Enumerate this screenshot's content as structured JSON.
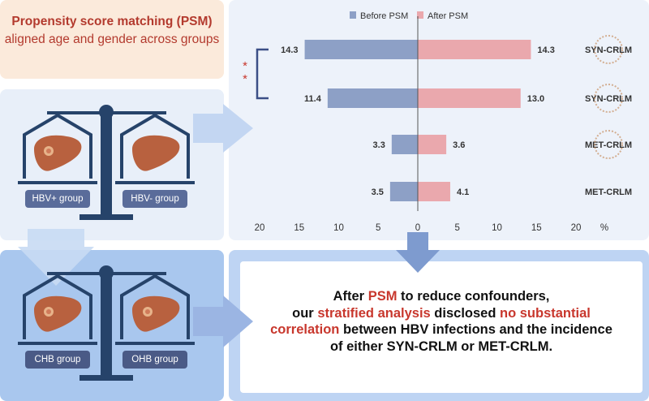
{
  "psm": {
    "title": "Propensity score matching (PSM)",
    "subtitle": "aligned age and gender across groups"
  },
  "groups": {
    "hbv_pos": "HBV+ group",
    "hbv_neg": "HBV- group",
    "chb": "CHB group",
    "ohb": "OHB group"
  },
  "chart_data": {
    "type": "bar",
    "orientation": "horizontal",
    "categories": [
      "SYN-CRLM",
      "SYN-CRLM",
      "MET-CRLM",
      "MET-CRLM"
    ],
    "series": [
      {
        "name": "Before PSM",
        "values": [
          14.3,
          11.4,
          3.3,
          3.5
        ]
      },
      {
        "name": "After PSM",
        "values": [
          14.3,
          13.0,
          3.6,
          4.1
        ]
      }
    ],
    "xlim": [
      -20,
      20
    ],
    "xticks": [
      "20",
      "15",
      "10",
      "5",
      "0",
      "5",
      "10",
      "15",
      "20"
    ],
    "unit": "%",
    "legend_position": "top",
    "significance_marks": [
      "*",
      "*"
    ],
    "colors": {
      "before": "#8da0c6",
      "after": "#eaa8ad"
    }
  },
  "conclusion": {
    "l1_a": "After ",
    "l1_hl": "PSM",
    "l1_b": " to reduce confounders,",
    "l2_a": "our ",
    "l2_hl1": "stratified analysis",
    "l2_b": " disclosed ",
    "l2_hl2": "no substantial",
    "l3_hl": "correlation",
    "l3_b": " between HBV infections and the incidence",
    "l4": "of either SYN-CRLM or MET-CRLM."
  },
  "colors": {
    "accent_red": "#c8372d",
    "scale_teal": "#26436a",
    "arrow_blue": "#a9c3ec"
  }
}
